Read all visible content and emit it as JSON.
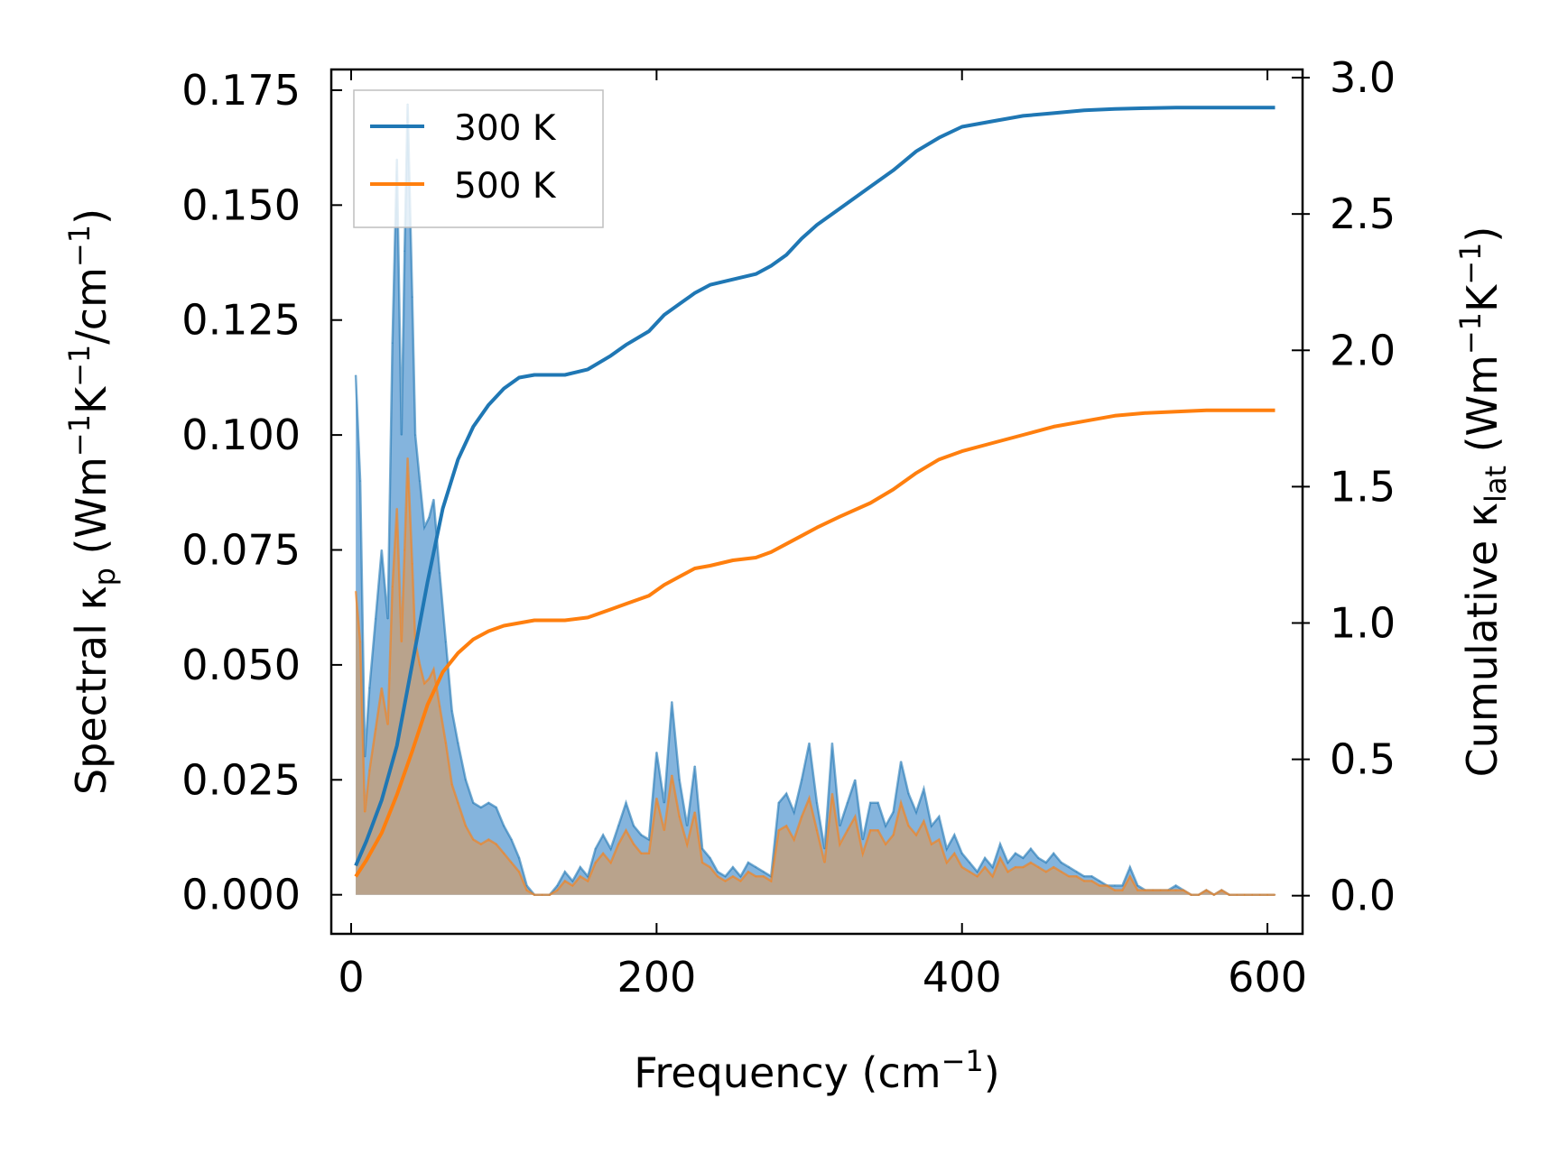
{
  "chart_data": {
    "type": "line",
    "xlabel": {
      "main": "Frequency (cm",
      "sup": "−1",
      "end": ")"
    },
    "ylabel_left": {
      "main": "Spectral κ",
      "sub": "p",
      "mid": " (Wm",
      "sup1": "−1",
      "k": "K",
      "sup2": "−1",
      "rest": "/cm",
      "sup3": "−1",
      "end": ")"
    },
    "ylabel_right": {
      "main": "Cumulative κ",
      "sub": "lat",
      "mid": " (Wm",
      "sup1": "−1",
      "k": "K",
      "sup2": "−1",
      "end": ")"
    },
    "xlim": [
      -13,
      623
    ],
    "ylim_left": [
      -0.0085,
      0.1795
    ],
    "ylim_right": [
      -0.14,
      3.03
    ],
    "x_ticks": [
      0,
      200,
      400,
      600
    ],
    "x_tick_labels": [
      "0",
      "200",
      "400",
      "600"
    ],
    "y_left_ticks": [
      0.0,
      0.025,
      0.05,
      0.075,
      0.1,
      0.125,
      0.15,
      0.175
    ],
    "y_left_tick_labels": [
      "0.000",
      "0.025",
      "0.050",
      "0.075",
      "0.100",
      "0.125",
      "0.150",
      "0.175"
    ],
    "y_right_ticks": [
      0.0,
      0.5,
      1.0,
      1.5,
      2.0,
      2.5,
      3.0
    ],
    "y_right_tick_labels": [
      "0.0",
      "0.5",
      "1.0",
      "1.5",
      "2.0",
      "2.5",
      "3.0"
    ],
    "legend": {
      "position": "upper-left",
      "entries": [
        "300 K",
        "500 K"
      ]
    },
    "colors": {
      "s300": "#1f77b4",
      "s500": "#ff7f0e",
      "fill300": "#5b9bd1",
      "fill500": "#c79f78"
    },
    "spectral_series": [
      {
        "name": "300 K",
        "x": [
          3,
          6,
          9,
          12,
          16,
          20,
          24,
          27,
          30,
          33,
          35,
          37,
          40,
          42,
          45,
          48,
          51,
          54,
          58,
          62,
          66,
          70,
          75,
          80,
          85,
          90,
          95,
          100,
          105,
          110,
          115,
          120,
          125,
          130,
          135,
          140,
          145,
          150,
          155,
          160,
          165,
          170,
          175,
          180,
          185,
          190,
          195,
          200,
          205,
          210,
          215,
          220,
          225,
          230,
          235,
          240,
          245,
          250,
          255,
          260,
          265,
          270,
          275,
          280,
          285,
          290,
          295,
          300,
          305,
          310,
          315,
          320,
          325,
          330,
          335,
          340,
          345,
          350,
          355,
          360,
          365,
          370,
          375,
          380,
          385,
          390,
          395,
          400,
          405,
          410,
          415,
          420,
          425,
          430,
          435,
          440,
          445,
          450,
          455,
          460,
          465,
          470,
          475,
          480,
          485,
          490,
          495,
          500,
          505,
          510,
          515,
          520,
          525,
          530,
          535,
          540,
          545,
          550,
          555,
          560,
          565,
          570,
          575,
          580,
          585,
          590,
          595,
          600,
          605
        ],
        "values": [
          0.113,
          0.09,
          0.03,
          0.045,
          0.06,
          0.075,
          0.06,
          0.12,
          0.16,
          0.1,
          0.14,
          0.172,
          0.13,
          0.1,
          0.09,
          0.08,
          0.082,
          0.086,
          0.07,
          0.055,
          0.04,
          0.033,
          0.025,
          0.02,
          0.019,
          0.02,
          0.019,
          0.015,
          0.012,
          0.008,
          0.002,
          0.0,
          0.0,
          0.0,
          0.002,
          0.005,
          0.003,
          0.006,
          0.004,
          0.01,
          0.013,
          0.01,
          0.015,
          0.02,
          0.015,
          0.013,
          0.012,
          0.031,
          0.02,
          0.042,
          0.025,
          0.015,
          0.028,
          0.01,
          0.008,
          0.005,
          0.004,
          0.006,
          0.004,
          0.007,
          0.006,
          0.005,
          0.004,
          0.02,
          0.022,
          0.018,
          0.025,
          0.033,
          0.02,
          0.01,
          0.033,
          0.015,
          0.02,
          0.025,
          0.012,
          0.02,
          0.02,
          0.015,
          0.018,
          0.029,
          0.022,
          0.018,
          0.023,
          0.015,
          0.017,
          0.01,
          0.013,
          0.009,
          0.007,
          0.005,
          0.008,
          0.006,
          0.011,
          0.007,
          0.009,
          0.008,
          0.01,
          0.008,
          0.007,
          0.009,
          0.007,
          0.006,
          0.005,
          0.004,
          0.004,
          0.003,
          0.002,
          0.002,
          0.002,
          0.006,
          0.002,
          0.001,
          0.001,
          0.001,
          0.001,
          0.002,
          0.001,
          0.0,
          0.0,
          0.001,
          0.0,
          0.001,
          0.0,
          0.0,
          0.0,
          0.0,
          0.0,
          0.0,
          0.0
        ]
      },
      {
        "name": "500 K",
        "x": [
          3,
          6,
          9,
          12,
          16,
          20,
          24,
          27,
          30,
          33,
          35,
          37,
          40,
          42,
          45,
          48,
          51,
          54,
          58,
          62,
          66,
          70,
          75,
          80,
          85,
          90,
          95,
          100,
          105,
          110,
          115,
          120,
          125,
          130,
          135,
          140,
          145,
          150,
          155,
          160,
          165,
          170,
          175,
          180,
          185,
          190,
          195,
          200,
          205,
          210,
          215,
          220,
          225,
          230,
          235,
          240,
          245,
          250,
          255,
          260,
          265,
          270,
          275,
          280,
          285,
          290,
          295,
          300,
          305,
          310,
          315,
          320,
          325,
          330,
          335,
          340,
          345,
          350,
          355,
          360,
          365,
          370,
          375,
          380,
          385,
          390,
          395,
          400,
          405,
          410,
          415,
          420,
          425,
          430,
          435,
          440,
          445,
          450,
          455,
          460,
          465,
          470,
          475,
          480,
          485,
          490,
          495,
          500,
          505,
          510,
          515,
          520,
          525,
          530,
          535,
          540,
          545,
          550,
          555,
          560,
          565,
          570,
          575,
          580,
          585,
          590,
          595,
          600,
          605
        ],
        "values": [
          0.066,
          0.055,
          0.018,
          0.027,
          0.036,
          0.045,
          0.037,
          0.067,
          0.084,
          0.055,
          0.075,
          0.095,
          0.072,
          0.055,
          0.05,
          0.046,
          0.047,
          0.049,
          0.041,
          0.033,
          0.024,
          0.02,
          0.015,
          0.012,
          0.011,
          0.012,
          0.011,
          0.009,
          0.007,
          0.005,
          0.001,
          0.0,
          0.0,
          0.0,
          0.001,
          0.003,
          0.002,
          0.004,
          0.003,
          0.007,
          0.009,
          0.007,
          0.011,
          0.014,
          0.011,
          0.009,
          0.009,
          0.021,
          0.014,
          0.026,
          0.017,
          0.011,
          0.018,
          0.007,
          0.006,
          0.004,
          0.003,
          0.004,
          0.003,
          0.005,
          0.004,
          0.004,
          0.003,
          0.014,
          0.015,
          0.012,
          0.017,
          0.021,
          0.014,
          0.007,
          0.022,
          0.011,
          0.014,
          0.017,
          0.009,
          0.014,
          0.014,
          0.011,
          0.013,
          0.02,
          0.015,
          0.013,
          0.016,
          0.011,
          0.012,
          0.007,
          0.009,
          0.006,
          0.005,
          0.004,
          0.006,
          0.004,
          0.008,
          0.005,
          0.006,
          0.006,
          0.007,
          0.006,
          0.005,
          0.006,
          0.005,
          0.004,
          0.004,
          0.003,
          0.003,
          0.002,
          0.002,
          0.001,
          0.001,
          0.004,
          0.001,
          0.001,
          0.001,
          0.001,
          0.001,
          0.001,
          0.001,
          0.0,
          0.0,
          0.001,
          0.0,
          0.001,
          0.0,
          0.0,
          0.0,
          0.0,
          0.0,
          0.0,
          0.0
        ]
      }
    ],
    "cumulative_series": [
      {
        "name": "300 K",
        "x": [
          3,
          10,
          20,
          30,
          40,
          50,
          60,
          70,
          80,
          90,
          100,
          110,
          120,
          140,
          155,
          170,
          180,
          195,
          205,
          215,
          225,
          235,
          250,
          265,
          275,
          285,
          295,
          305,
          320,
          340,
          355,
          370,
          385,
          400,
          420,
          440,
          460,
          480,
          500,
          520,
          540,
          560,
          580,
          605
        ],
        "values": [
          0.11,
          0.2,
          0.35,
          0.55,
          0.85,
          1.15,
          1.42,
          1.6,
          1.72,
          1.8,
          1.86,
          1.9,
          1.91,
          1.91,
          1.93,
          1.98,
          2.02,
          2.07,
          2.13,
          2.17,
          2.21,
          2.24,
          2.26,
          2.28,
          2.31,
          2.35,
          2.41,
          2.46,
          2.52,
          2.6,
          2.66,
          2.73,
          2.78,
          2.82,
          2.84,
          2.86,
          2.87,
          2.88,
          2.885,
          2.888,
          2.89,
          2.89,
          2.89,
          2.89
        ]
      },
      {
        "name": "500 K",
        "x": [
          3,
          10,
          20,
          30,
          40,
          50,
          60,
          70,
          80,
          90,
          100,
          110,
          120,
          140,
          155,
          170,
          180,
          195,
          205,
          215,
          225,
          235,
          250,
          265,
          275,
          285,
          295,
          305,
          320,
          340,
          355,
          370,
          385,
          400,
          420,
          440,
          460,
          480,
          500,
          520,
          540,
          560,
          580,
          605
        ],
        "values": [
          0.07,
          0.13,
          0.23,
          0.37,
          0.53,
          0.7,
          0.82,
          0.89,
          0.94,
          0.97,
          0.99,
          1.0,
          1.01,
          1.01,
          1.02,
          1.05,
          1.07,
          1.1,
          1.14,
          1.17,
          1.2,
          1.21,
          1.23,
          1.24,
          1.26,
          1.29,
          1.32,
          1.35,
          1.39,
          1.44,
          1.49,
          1.55,
          1.6,
          1.63,
          1.66,
          1.69,
          1.72,
          1.74,
          1.76,
          1.77,
          1.775,
          1.78,
          1.78,
          1.78
        ]
      }
    ]
  }
}
